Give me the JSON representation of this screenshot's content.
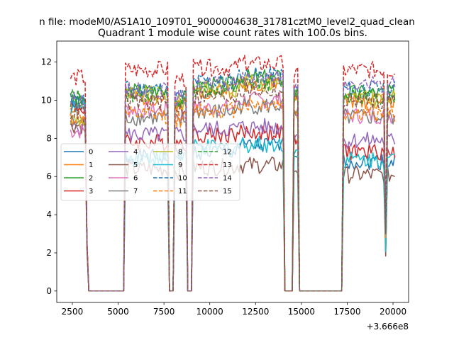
{
  "figure": {
    "suptitle": "n file: modeM0/AS1A10_109T01_9000004638_31781cztM0_level2_quad_clean",
    "title": "Quadrant 1 module wise count rates with 100.0s bins."
  },
  "chart_data": {
    "type": "line",
    "title": "Quadrant 1 module wise count rates with 100.0s bins.",
    "xlabel": "",
    "ylabel": "",
    "x_offset_label": "+3.666e8",
    "xlim": [
      1650,
      20850
    ],
    "ylim": [
      -0.6,
      13.1
    ],
    "xticks": [
      2500,
      5000,
      7500,
      10000,
      12500,
      15000,
      17500,
      20000
    ],
    "yticks": [
      0,
      2,
      4,
      6,
      8,
      10,
      12
    ],
    "grid": false,
    "legend_position": "center-left",
    "legend_ncol": 4,
    "segments": [
      [
        2400,
        3300
      ],
      [
        5400,
        7700
      ],
      [
        8050,
        8700
      ],
      [
        9100,
        11400
      ],
      [
        11450,
        13800
      ],
      [
        13900,
        14050
      ],
      [
        14550,
        14850
      ],
      [
        17250,
        20150
      ]
    ],
    "active_ranges": [
      [
        5400,
        7700
      ],
      [
        8050,
        8700
      ],
      [
        11450,
        13800
      ],
      [
        14550,
        14850
      ],
      [
        17250,
        20150
      ]
    ],
    "series": [
      {
        "name": "0",
        "color": "#1f77b4",
        "dash": false,
        "levels": [
          9.9,
          0.0,
          7.0,
          7.2,
          0.0,
          7.3,
          7.6,
          7.4,
          6.8
        ]
      },
      {
        "name": "1",
        "color": "#ff7f0e",
        "dash": false,
        "levels": [
          9.7,
          0.0,
          10.1,
          9.8,
          0.0,
          10.5,
          10.9,
          10.3,
          10.0
        ]
      },
      {
        "name": "2",
        "color": "#2ca02c",
        "dash": false,
        "levels": [
          9.9,
          0.0,
          10.5,
          10.1,
          0.0,
          10.8,
          11.2,
          10.5,
          10.4
        ]
      },
      {
        "name": "3",
        "color": "#d62728",
        "dash": false,
        "levels": [
          9.6,
          0.0,
          7.8,
          7.8,
          0.0,
          8.2,
          8.3,
          7.9,
          7.3
        ]
      },
      {
        "name": "4",
        "color": "#9467bd",
        "dash": false,
        "levels": [
          8.6,
          0.0,
          8.2,
          8.2,
          0.0,
          8.5,
          8.6,
          8.3,
          7.9
        ]
      },
      {
        "name": "5",
        "color": "#8c564b",
        "dash": false,
        "levels": [
          8.7,
          0.0,
          6.4,
          6.3,
          0.0,
          6.5,
          6.6,
          6.4,
          6.1
        ]
      },
      {
        "name": "6",
        "color": "#e377c2",
        "dash": false,
        "levels": [
          8.4,
          0.0,
          9.5,
          9.2,
          0.0,
          9.6,
          10.0,
          9.4,
          9.2
        ]
      },
      {
        "name": "7",
        "color": "#7f7f7f",
        "dash": false,
        "levels": [
          8.8,
          0.0,
          9.1,
          8.9,
          0.0,
          9.4,
          9.7,
          9.2,
          9.1
        ]
      },
      {
        "name": "8",
        "color": "#bcbd22",
        "dash": false,
        "levels": [
          9.0,
          0.0,
          10.3,
          9.9,
          0.0,
          10.6,
          10.9,
          10.2,
          10.1
        ]
      },
      {
        "name": "9",
        "color": "#17becf",
        "dash": false,
        "levels": [
          9.6,
          0.0,
          7.0,
          7.1,
          0.0,
          7.5,
          7.7,
          7.3,
          6.9
        ]
      },
      {
        "name": "10",
        "color": "#1f77b4",
        "dash": true,
        "levels": [
          10.0,
          0.0,
          10.6,
          10.2,
          0.0,
          11.0,
          11.3,
          10.6,
          10.6
        ]
      },
      {
        "name": "11",
        "color": "#ff7f0e",
        "dash": true,
        "levels": [
          9.1,
          0.0,
          9.2,
          9.0,
          0.0,
          9.5,
          9.8,
          9.2,
          9.3
        ]
      },
      {
        "name": "12",
        "color": "#2ca02c",
        "dash": true,
        "levels": [
          10.2,
          0.0,
          10.3,
          10.0,
          0.0,
          10.6,
          10.9,
          10.3,
          10.2
        ]
      },
      {
        "name": "13",
        "color": "#d62728",
        "dash": true,
        "levels": [
          11.2,
          0.0,
          11.6,
          11.1,
          0.0,
          11.7,
          11.9,
          11.3,
          11.6
        ]
      },
      {
        "name": "14",
        "color": "#9467bd",
        "dash": true,
        "levels": [
          10.0,
          0.0,
          10.5,
          10.1,
          0.0,
          10.8,
          11.1,
          10.5,
          10.8
        ]
      },
      {
        "name": "15",
        "color": "#8c564b",
        "dash": true,
        "levels": [
          9.4,
          0.0,
          9.9,
          9.6,
          0.0,
          10.2,
          10.5,
          9.9,
          10.0
        ]
      }
    ]
  }
}
